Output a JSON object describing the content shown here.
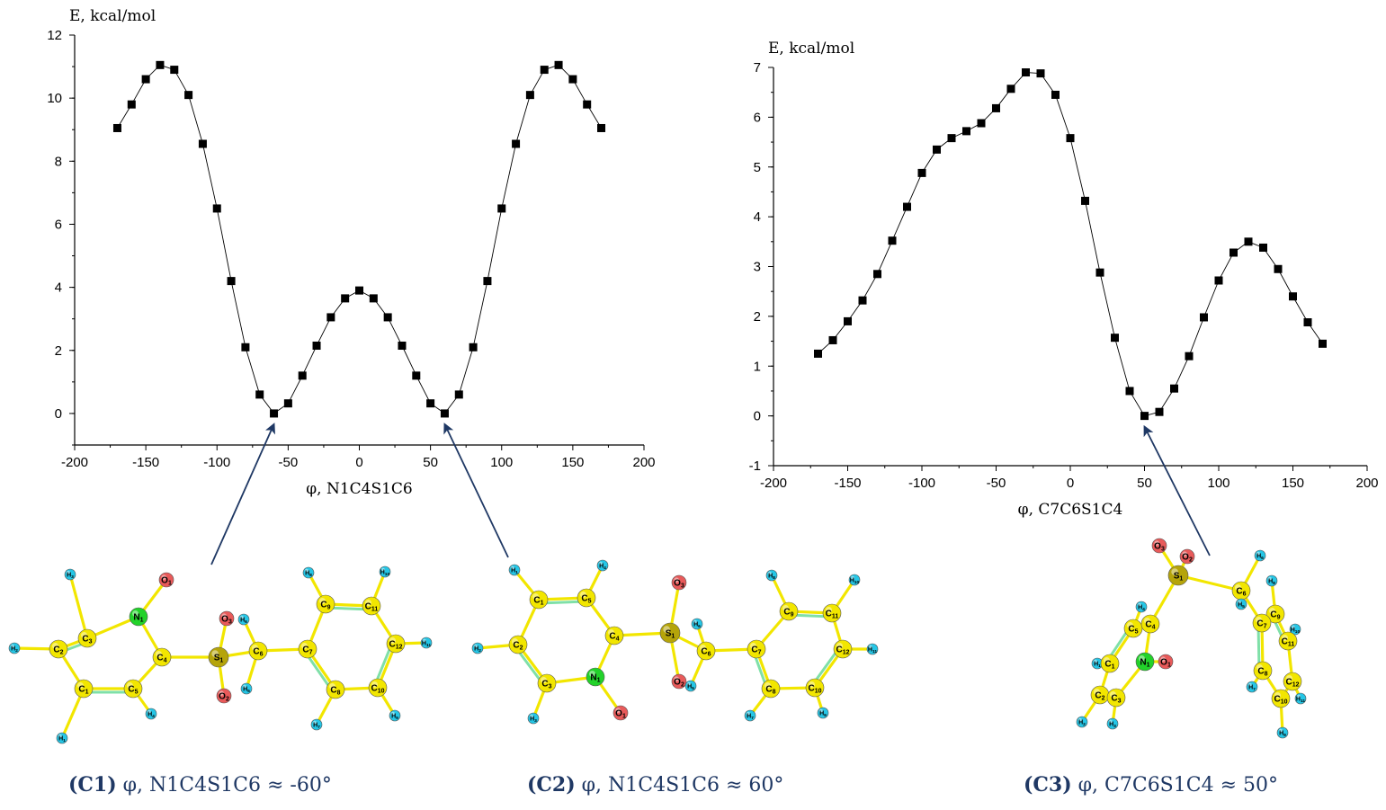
{
  "chart_data": [
    {
      "type": "line",
      "ylabel": "E, kcal/mol",
      "xlabel": "φ, N1C4S1C6",
      "xlim": [
        -200,
        200
      ],
      "ylim": [
        -1,
        12
      ],
      "xticks": [
        -200,
        -150,
        -100,
        -50,
        0,
        50,
        100,
        150,
        200
      ],
      "yticks": [
        0,
        2,
        4,
        6,
        8,
        10,
        12
      ],
      "marker": "square",
      "color": "#000000",
      "series": [
        {
          "x": [
            -170,
            -160,
            -150,
            -140,
            -130,
            -120,
            -110,
            -100,
            -90,
            -80,
            -70,
            -60,
            -50,
            -40,
            -30,
            -20,
            -10,
            0,
            10,
            20,
            30,
            40,
            50,
            60,
            70,
            80,
            90,
            100,
            110,
            120,
            130,
            140,
            150,
            160,
            170
          ],
          "y": [
            9.05,
            9.8,
            10.6,
            11.05,
            10.9,
            10.1,
            8.55,
            6.5,
            4.2,
            2.1,
            0.6,
            0.0,
            0.32,
            1.2,
            2.15,
            3.05,
            3.65,
            3.9,
            3.65,
            3.05,
            2.15,
            1.2,
            0.32,
            0.0,
            0.6,
            2.1,
            4.2,
            6.5,
            8.55,
            10.1,
            10.9,
            11.05,
            10.6,
            9.8,
            9.05
          ]
        }
      ],
      "arrows_to_x": [
        -60,
        60
      ]
    },
    {
      "type": "line",
      "ylabel": "E, kcal/mol",
      "xlabel": "φ, C7C6S1C4",
      "xlim": [
        -200,
        200
      ],
      "ylim": [
        -1,
        7
      ],
      "xticks": [
        -200,
        -150,
        -100,
        -50,
        0,
        50,
        100,
        150,
        200
      ],
      "yticks": [
        -1,
        0,
        1,
        2,
        3,
        4,
        5,
        6,
        7
      ],
      "marker": "square",
      "color": "#000000",
      "series": [
        {
          "x": [
            -170,
            -160,
            -150,
            -140,
            -130,
            -120,
            -110,
            -100,
            -90,
            -80,
            -70,
            -60,
            -50,
            -40,
            -30,
            -20,
            -10,
            0,
            10,
            20,
            30,
            40,
            50,
            60,
            70,
            80,
            90,
            100,
            110,
            120,
            130,
            140,
            150,
            160,
            170
          ],
          "y": [
            1.25,
            1.52,
            1.9,
            2.32,
            2.85,
            3.52,
            4.2,
            4.88,
            5.35,
            5.58,
            5.72,
            5.88,
            6.18,
            6.57,
            6.9,
            6.88,
            6.45,
            5.58,
            4.32,
            2.88,
            1.57,
            0.5,
            0.0,
            0.08,
            0.55,
            1.2,
            1.98,
            2.72,
            3.28,
            3.5,
            3.38,
            2.95,
            2.4,
            1.88,
            1.45
          ]
        }
      ],
      "arrows_to_x": [
        50
      ]
    }
  ],
  "captions": [
    {
      "tag": "(C1)",
      "text": " φ, N1C4S1C6 ≈ -60°"
    },
    {
      "tag": "(C2)",
      "text": " φ, N1C4S1C6 ≈ 60°"
    },
    {
      "tag": "(C3)",
      "text": " φ, C7C6S1C4 ≈ 50°"
    }
  ],
  "atom_colors": {
    "C": "#f2e600",
    "N": "#22d22a",
    "O": "#e85a5a",
    "S": "#b5a40a",
    "H": "#25c6e6",
    "bond": "#f2e600",
    "double_bond": "#7fe0a8"
  },
  "molecules": {
    "c1": {
      "atoms": [
        {
          "label": "H3",
          "el": "H"
        },
        {
          "label": "O1",
          "el": "O"
        },
        {
          "label": "C3",
          "el": "C"
        },
        {
          "label": "N1",
          "el": "N"
        },
        {
          "label": "H2",
          "el": "H"
        },
        {
          "label": "C2",
          "el": "C"
        },
        {
          "label": "C4",
          "el": "C"
        },
        {
          "label": "C1",
          "el": "C"
        },
        {
          "label": "C5",
          "el": "C"
        },
        {
          "label": "H1",
          "el": "H"
        },
        {
          "label": "H4",
          "el": "H"
        },
        {
          "label": "O3",
          "el": "O"
        },
        {
          "label": "H6",
          "el": "H"
        },
        {
          "label": "S1",
          "el": "S"
        },
        {
          "label": "C6",
          "el": "C"
        },
        {
          "label": "H5",
          "el": "H"
        },
        {
          "label": "O2",
          "el": "O"
        },
        {
          "label": "H8",
          "el": "H"
        },
        {
          "label": "C9",
          "el": "C"
        },
        {
          "label": "H10",
          "el": "H"
        },
        {
          "label": "C11",
          "el": "C"
        },
        {
          "label": "C7",
          "el": "C"
        },
        {
          "label": "C12",
          "el": "C"
        },
        {
          "label": "H11",
          "el": "H"
        },
        {
          "label": "C8",
          "el": "C"
        },
        {
          "label": "C10",
          "el": "C"
        },
        {
          "label": "H7",
          "el": "H"
        },
        {
          "label": "H9",
          "el": "H"
        }
      ]
    },
    "c2": {
      "atoms": [
        {
          "label": "H1",
          "el": "H"
        },
        {
          "label": "H4",
          "el": "H"
        },
        {
          "label": "C1",
          "el": "C"
        },
        {
          "label": "C5",
          "el": "C"
        },
        {
          "label": "H2",
          "el": "H"
        },
        {
          "label": "C2",
          "el": "C"
        },
        {
          "label": "C4",
          "el": "C"
        },
        {
          "label": "C3",
          "el": "C"
        },
        {
          "label": "N1",
          "el": "N"
        },
        {
          "label": "H3",
          "el": "H"
        },
        {
          "label": "O1",
          "el": "O"
        },
        {
          "label": "O3",
          "el": "O"
        },
        {
          "label": "S1",
          "el": "S"
        },
        {
          "label": "H6",
          "el": "H"
        },
        {
          "label": "O2",
          "el": "O"
        },
        {
          "label": "C6",
          "el": "C"
        },
        {
          "label": "H5",
          "el": "H"
        },
        {
          "label": "H8",
          "el": "H"
        },
        {
          "label": "C9",
          "el": "C"
        },
        {
          "label": "H10",
          "el": "H"
        },
        {
          "label": "C11",
          "el": "C"
        },
        {
          "label": "C7",
          "el": "C"
        },
        {
          "label": "C12",
          "el": "C"
        },
        {
          "label": "H11",
          "el": "H"
        },
        {
          "label": "C8",
          "el": "C"
        },
        {
          "label": "C10",
          "el": "C"
        },
        {
          "label": "H7",
          "el": "H"
        },
        {
          "label": "H9",
          "el": "H"
        }
      ]
    },
    "c3": {
      "atoms": [
        {
          "label": "O3",
          "el": "O"
        },
        {
          "label": "O2",
          "el": "O"
        },
        {
          "label": "H6",
          "el": "H"
        },
        {
          "label": "S1",
          "el": "S"
        },
        {
          "label": "H8",
          "el": "H"
        },
        {
          "label": "C6",
          "el": "C"
        },
        {
          "label": "H5",
          "el": "H"
        },
        {
          "label": "C9",
          "el": "C"
        },
        {
          "label": "H4",
          "el": "H"
        },
        {
          "label": "C7",
          "el": "C"
        },
        {
          "label": "H10",
          "el": "H"
        },
        {
          "label": "C5",
          "el": "C"
        },
        {
          "label": "C4",
          "el": "C"
        },
        {
          "label": "C11",
          "el": "C"
        },
        {
          "label": "H1",
          "el": "H"
        },
        {
          "label": "C1",
          "el": "C"
        },
        {
          "label": "N1",
          "el": "N"
        },
        {
          "label": "O1",
          "el": "O"
        },
        {
          "label": "C8",
          "el": "C"
        },
        {
          "label": "H7",
          "el": "H"
        },
        {
          "label": "C12",
          "el": "C"
        },
        {
          "label": "C2",
          "el": "C"
        },
        {
          "label": "C3",
          "el": "C"
        },
        {
          "label": "C10",
          "el": "C"
        },
        {
          "label": "H11",
          "el": "H"
        },
        {
          "label": "H2",
          "el": "H"
        },
        {
          "label": "H3",
          "el": "H"
        },
        {
          "label": "H9",
          "el": "H"
        }
      ]
    }
  }
}
